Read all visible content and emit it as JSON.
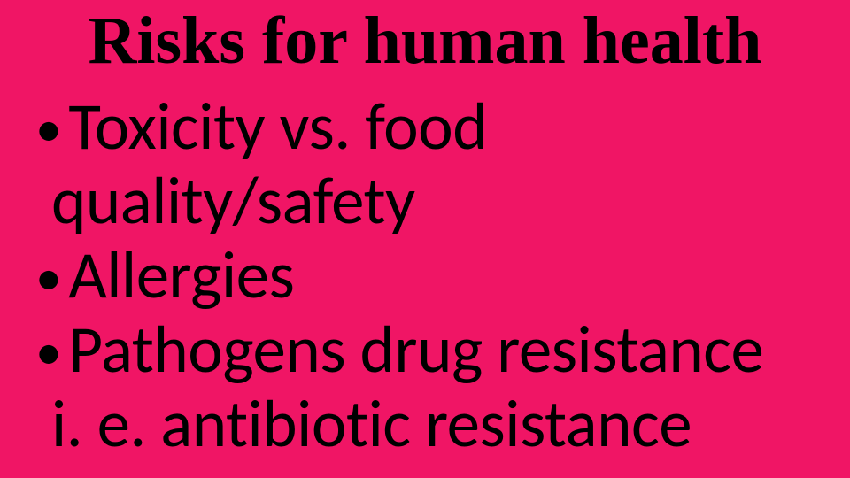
{
  "slide": {
    "background_color": "#f01565",
    "title": {
      "text": "Risks for human health",
      "font_family": "Times New Roman",
      "font_weight": "bold",
      "font_size_pt": 57,
      "color": "#000000"
    },
    "bullets": [
      {
        "line1": "Toxicity vs. food",
        "line2": "quality/safety"
      },
      {
        "line1": "Allergies"
      },
      {
        "line1": "Pathogens drug resistance",
        "line2": "i. e. antibiotic resistance"
      }
    ],
    "bullet_style": {
      "font_family": "Calibri",
      "font_size_pt": 56,
      "color": "#000000",
      "marker": "•"
    }
  }
}
